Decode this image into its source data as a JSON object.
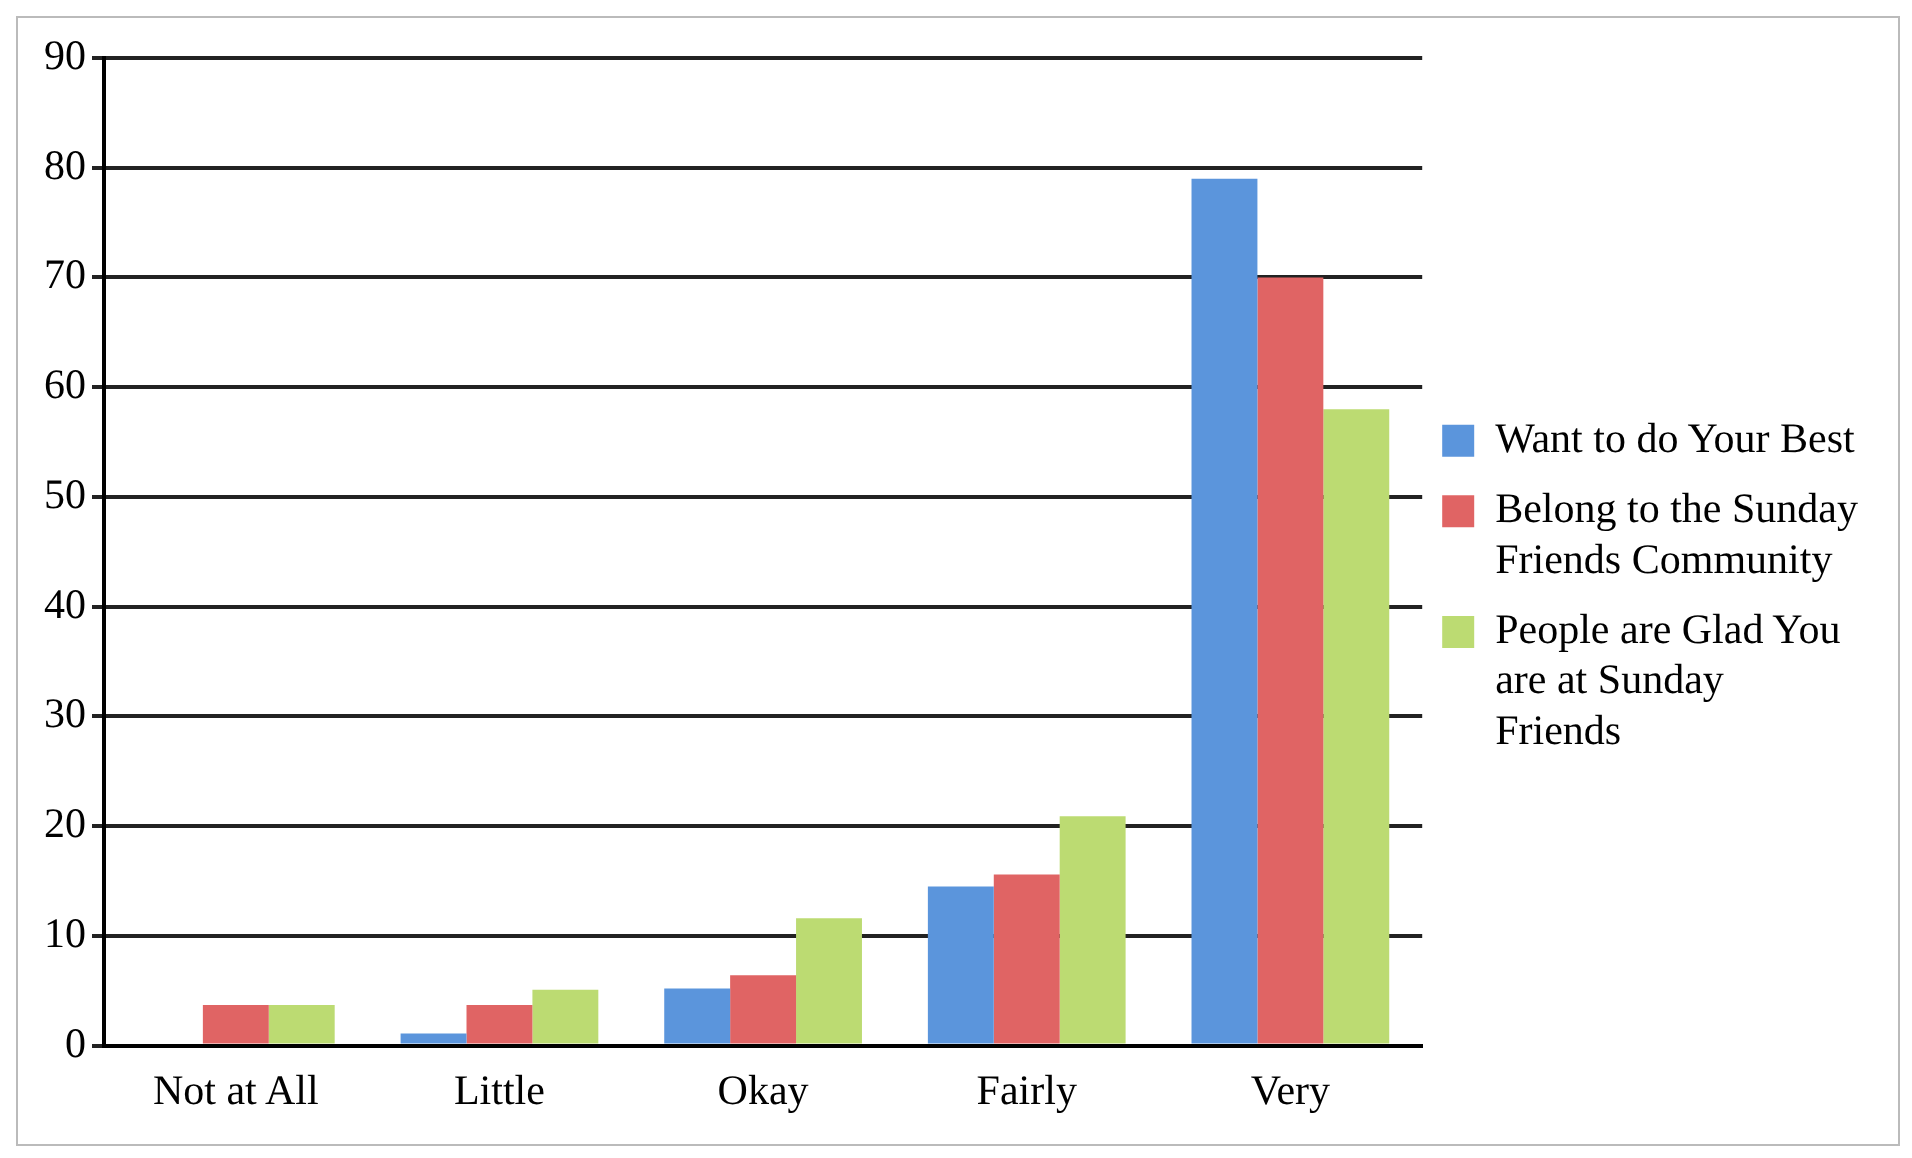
{
  "chart_data": {
    "type": "bar",
    "categories": [
      "Not at All",
      "Little",
      "Okay",
      "Fairly",
      "Very"
    ],
    "series": [
      {
        "name": "Want to do Your Best",
        "color": "#5b95dc",
        "values": [
          null,
          1.1,
          5.2,
          14.5,
          79
        ]
      },
      {
        "name": "Belong to the Sunday Friends Community",
        "color": "#e06464",
        "values": [
          3.7,
          3.7,
          6.4,
          15.6,
          70
        ]
      },
      {
        "name": "People are Glad You are at Sunday Friends",
        "color": "#bcdb72",
        "values": [
          3.7,
          5.1,
          11.6,
          20.9,
          58
        ]
      }
    ],
    "ylim": [
      0,
      90
    ],
    "yticks": [
      0,
      10,
      20,
      30,
      40,
      50,
      60,
      70,
      80,
      90
    ],
    "grid": "y",
    "legend": "right"
  }
}
